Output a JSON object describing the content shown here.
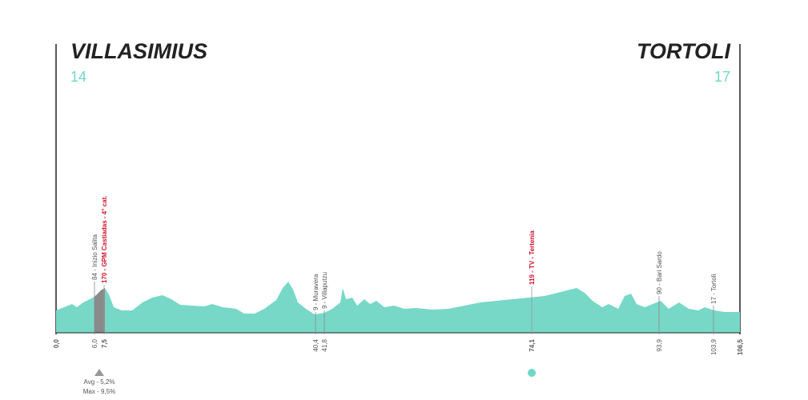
{
  "start": {
    "name": "VILLASIMIUS",
    "elevation": "14"
  },
  "finish": {
    "name": "TORTOLI",
    "elevation": "17"
  },
  "markers": [
    {
      "km": "0,0"
    },
    {
      "km": "6,0",
      "label": "84 - Inizio Salita"
    },
    {
      "km": "7,5",
      "label": "170 - GPM Castiadas - 4° cat."
    },
    {
      "km": "40,4",
      "label": "9 - Muravera"
    },
    {
      "km": "41,8",
      "label": "9 - Villaputzu"
    },
    {
      "km": "74,1",
      "label": "119 - TV - Tertenia"
    },
    {
      "km": "93,9",
      "label": "90 - Bari Sardo"
    },
    {
      "km": "103,9",
      "label": "17 - Tortolì"
    },
    {
      "km": "106,5"
    }
  ],
  "climb": {
    "avg": "Avg - 5,2%",
    "max": "Max - 9,5%"
  }
}
